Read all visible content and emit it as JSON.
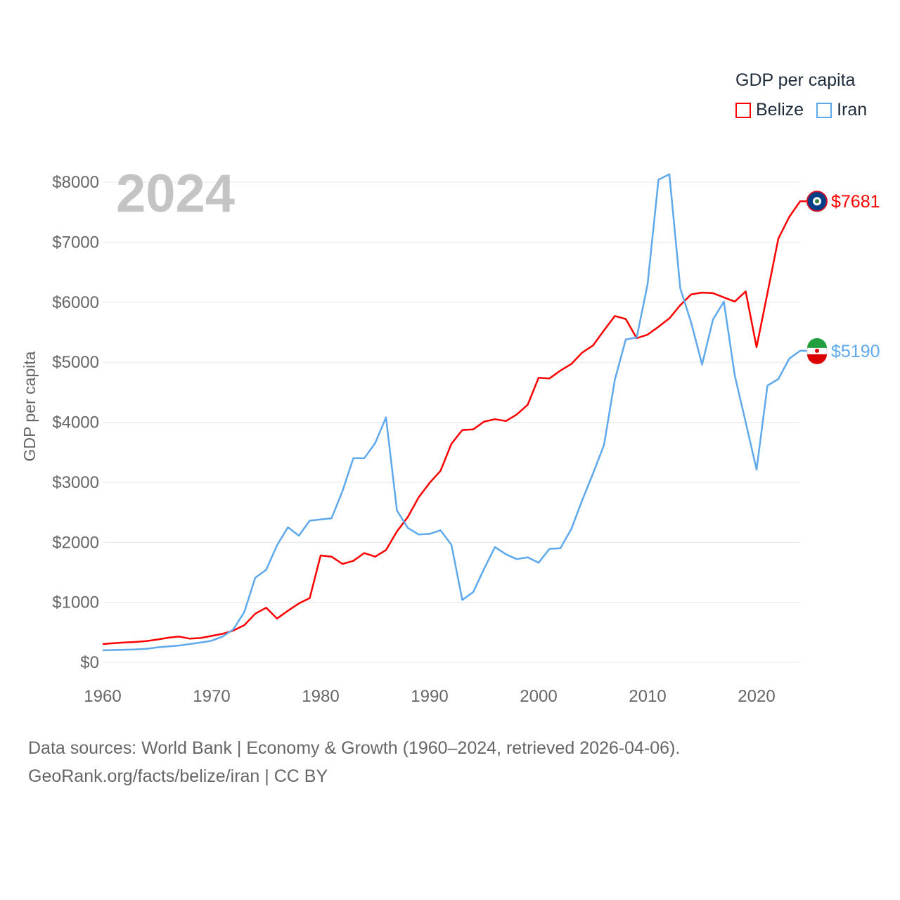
{
  "chart_data": {
    "type": "line",
    "title": "2024",
    "xlabel": "",
    "ylabel": "GDP per capita",
    "legend_title": "GDP per capita",
    "legend_position": "top-right",
    "xlim": [
      1960,
      2024
    ],
    "ylim": [
      0,
      8000
    ],
    "x_ticks": [
      1960,
      1970,
      1980,
      1990,
      2000,
      2010,
      2020
    ],
    "x_tick_labels": [
      "1960",
      "1970",
      "1980",
      "1990",
      "2000",
      "2010",
      "2020"
    ],
    "y_ticks": [
      0,
      1000,
      2000,
      3000,
      4000,
      5000,
      6000,
      7000,
      8000
    ],
    "y_tick_labels": [
      "$0",
      "$1000",
      "$2000",
      "$3000",
      "$4000",
      "$5000",
      "$6000",
      "$7000",
      "$8000"
    ],
    "grid": true,
    "x": [
      1960,
      1961,
      1962,
      1963,
      1964,
      1965,
      1966,
      1967,
      1968,
      1969,
      1970,
      1971,
      1972,
      1973,
      1974,
      1975,
      1976,
      1977,
      1978,
      1979,
      1980,
      1981,
      1982,
      1983,
      1984,
      1985,
      1986,
      1987,
      1988,
      1989,
      1990,
      1991,
      1992,
      1993,
      1994,
      1995,
      1996,
      1997,
      1998,
      1999,
      2000,
      2001,
      2002,
      2003,
      2004,
      2005,
      2006,
      2007,
      2008,
      2009,
      2010,
      2011,
      2012,
      2013,
      2014,
      2015,
      2016,
      2017,
      2018,
      2019,
      2020,
      2021,
      2022,
      2023,
      2024
    ],
    "series": [
      {
        "name": "Belize",
        "color": "#ff0000",
        "end_label": "$7681",
        "values": [
          305,
          320,
          330,
          340,
          355,
          380,
          410,
          430,
          395,
          405,
          440,
          475,
          530,
          620,
          810,
          910,
          730,
          860,
          980,
          1070,
          1780,
          1760,
          1640,
          1690,
          1820,
          1760,
          1870,
          2180,
          2420,
          2750,
          2990,
          3190,
          3640,
          3870,
          3880,
          4010,
          4050,
          4020,
          4130,
          4290,
          4740,
          4730,
          4860,
          4970,
          5160,
          5280,
          5530,
          5770,
          5720,
          5400,
          5460,
          5590,
          5730,
          5950,
          6130,
          6160,
          6150,
          6080,
          6010,
          6180,
          5250,
          6150,
          7060,
          7420,
          7681
        ]
      },
      {
        "name": "Iran",
        "color": "#5ea9ec",
        "end_label": "$5190",
        "values": [
          200,
          205,
          210,
          215,
          225,
          250,
          265,
          280,
          305,
          330,
          360,
          430,
          550,
          840,
          1410,
          1540,
          1950,
          2250,
          2110,
          2360,
          2380,
          2400,
          2850,
          3400,
          3400,
          3650,
          4080,
          2530,
          2240,
          2130,
          2140,
          2200,
          1960,
          1040,
          1170,
          1560,
          1920,
          1800,
          1720,
          1750,
          1660,
          1890,
          1900,
          2220,
          2700,
          3150,
          3620,
          4710,
          5380,
          5410,
          6300,
          8040,
          8130,
          6230,
          5660,
          4960,
          5710,
          6010,
          4780,
          4000,
          3210,
          4610,
          4720,
          5060,
          5190
        ]
      }
    ]
  },
  "footer": {
    "line1": "Data sources: World Bank | Economy & Growth (1960–2024, retrieved 2026-04-06).",
    "line2": "GeoRank.org/facts/belize/iran | CC BY"
  }
}
